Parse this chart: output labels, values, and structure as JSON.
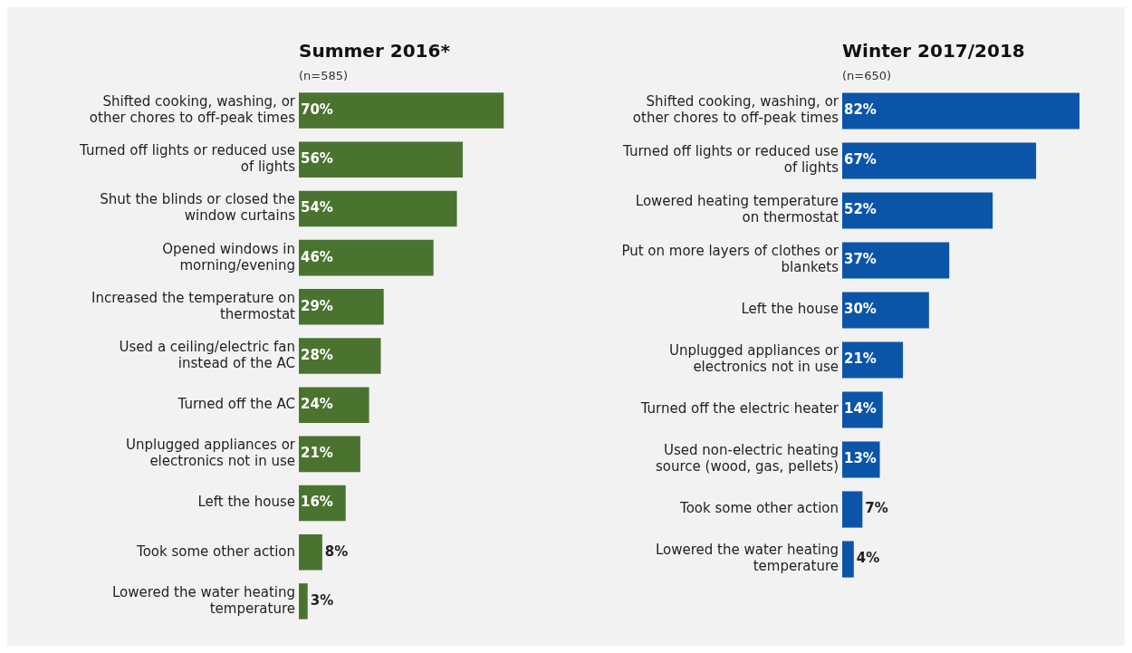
{
  "chart_data": [
    {
      "type": "bar",
      "orientation": "horizontal",
      "title": "Summer 2016*",
      "subtitle": "(n=585)",
      "categories": [
        "Shifted cooking, washing, or other chores to off-peak times",
        "Turned off lights or reduced use of lights",
        "Shut the blinds or closed the window curtains",
        "Opened windows in morning/evening",
        "Increased the temperature on thermostat",
        "Used a ceiling/electric fan instead of the AC",
        "Turned off the AC",
        "Unplugged appliances or electronics not in use",
        "Left the house",
        "Took some other action",
        "Lowered the water heating temperature"
      ],
      "values": [
        70,
        56,
        54,
        46,
        29,
        28,
        24,
        21,
        16,
        8,
        3
      ],
      "value_labels": [
        "70%",
        "56%",
        "54%",
        "46%",
        "29%",
        "28%",
        "24%",
        "21%",
        "16%",
        "8%",
        "3%"
      ],
      "color": "#4a7330",
      "legend": false
    },
    {
      "type": "bar",
      "orientation": "horizontal",
      "title": "Winter 2017/2018",
      "subtitle": "(n=650)",
      "categories": [
        "Shifted cooking, washing, or other chores to off-peak times",
        "Turned off lights or reduced use of lights",
        "Lowered heating temperature on thermostat",
        "Put on more layers of clothes or blankets",
        "Left the house",
        "Unplugged appliances or electronics not in use",
        "Turned off the electric heater",
        "Used non-electric heating source (wood, gas, pellets)",
        "Took some other action",
        "Lowered the water heating temperature"
      ],
      "values": [
        82,
        67,
        52,
        37,
        30,
        21,
        14,
        13,
        7,
        4
      ],
      "value_labels": [
        "82%",
        "67%",
        "52%",
        "37%",
        "30%",
        "21%",
        "14%",
        "13%",
        "7%",
        "4%"
      ],
      "color": "#0b55a8",
      "legend": false
    }
  ]
}
